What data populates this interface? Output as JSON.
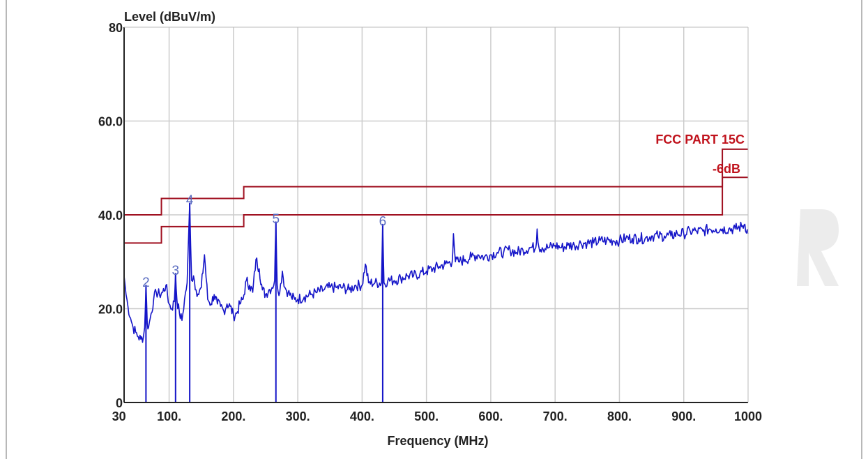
{
  "colors": {
    "trace": "#1515c8",
    "limit": "#a01020",
    "limit_text": "#c0121c",
    "grid": "#cccccc",
    "axis": "#222222",
    "marker_text": "#5a6cc0"
  },
  "chart_data": {
    "type": "line",
    "title": "",
    "ylabel": "Level (dBuV/m)",
    "xlabel": "Frequency (MHz)",
    "xlim": [
      30,
      1000
    ],
    "ylim": [
      0,
      80
    ],
    "grid": true,
    "x_ticks": [
      {
        "value": 30,
        "label": "30"
      },
      {
        "value": 100,
        "label": "100."
      },
      {
        "value": 200,
        "label": "200."
      },
      {
        "value": 300,
        "label": "300."
      },
      {
        "value": 400,
        "label": "400."
      },
      {
        "value": 500,
        "label": "500."
      },
      {
        "value": 600,
        "label": "600."
      },
      {
        "value": 700,
        "label": "700."
      },
      {
        "value": 800,
        "label": "800."
      },
      {
        "value": 900,
        "label": "900."
      },
      {
        "value": 1000,
        "label": "1000"
      }
    ],
    "y_ticks": [
      {
        "value": 0,
        "label": "0"
      },
      {
        "value": 20,
        "label": "20.0"
      },
      {
        "value": 40,
        "label": "40.0"
      },
      {
        "value": 60,
        "label": "60.0"
      },
      {
        "value": 80,
        "label": "80"
      }
    ],
    "limit_lines": [
      {
        "name": "FCC PART 15C",
        "points": [
          [
            30,
            40.0
          ],
          [
            88,
            40.0
          ],
          [
            88,
            43.5
          ],
          [
            216,
            43.5
          ],
          [
            216,
            46.0
          ],
          [
            960,
            46.0
          ],
          [
            960,
            54.0
          ],
          [
            1000,
            54.0
          ]
        ]
      },
      {
        "name": "-6dB",
        "points": [
          [
            30,
            34.0
          ],
          [
            88,
            34.0
          ],
          [
            88,
            37.5
          ],
          [
            216,
            37.5
          ],
          [
            216,
            40.0
          ],
          [
            960,
            40.0
          ],
          [
            960,
            48.0
          ],
          [
            1000,
            48.0
          ]
        ]
      }
    ],
    "markers": [
      {
        "label": "2",
        "x": 64.0,
        "y": 25.0
      },
      {
        "label": "3",
        "x": 110.0,
        "y": 27.5
      },
      {
        "label": "4",
        "x": 132.0,
        "y": 42.5
      },
      {
        "label": "5",
        "x": 266.0,
        "y": 38.5
      },
      {
        "label": "6",
        "x": 432.0,
        "y": 38.0
      }
    ],
    "series": [
      {
        "x": [
          30,
          33,
          36,
          40,
          44,
          48,
          52,
          56,
          60,
          62,
          64,
          66,
          68,
          72,
          76,
          80,
          85,
          90,
          95,
          100,
          104,
          108,
          110,
          112,
          116,
          120,
          124,
          128,
          132,
          135,
          138,
          142,
          146,
          150,
          155,
          160,
          165,
          170,
          175,
          180,
          185,
          190,
          195,
          200,
          205,
          210,
          215,
          220,
          225,
          230,
          235,
          240,
          245,
          250,
          255,
          260,
          264,
          266,
          268,
          272,
          276,
          280,
          285,
          290,
          295,
          300,
          310,
          320,
          330,
          340,
          350,
          360,
          370,
          380,
          390,
          400,
          405,
          410,
          420,
          430,
          432,
          434,
          440,
          450,
          460,
          470,
          480,
          490,
          500,
          510,
          520,
          530,
          540,
          542,
          545,
          550,
          560,
          570,
          580,
          590,
          600,
          610,
          620,
          630,
          640,
          650,
          660,
          670,
          672,
          675,
          680,
          690,
          700,
          710,
          720,
          730,
          740,
          750,
          760,
          770,
          780,
          790,
          800,
          810,
          820,
          830,
          840,
          850,
          860,
          870,
          880,
          890,
          900,
          910,
          920,
          930,
          940,
          950,
          960,
          970,
          980,
          990,
          995,
          1000
        ],
        "values": [
          27.0,
          23.0,
          20.5,
          18.0,
          16.0,
          15.0,
          14.0,
          13.5,
          14.0,
          16.0,
          25.0,
          17.0,
          16.0,
          19.0,
          22.0,
          23.5,
          23.0,
          23.5,
          25.0,
          21.0,
          20.0,
          21.5,
          27.5,
          22.0,
          19.0,
          17.5,
          22.0,
          25.5,
          42.5,
          26.0,
          27.0,
          24.0,
          23.0,
          24.5,
          31.5,
          22.0,
          21.0,
          23.0,
          21.0,
          20.5,
          19.5,
          21.0,
          20.5,
          18.5,
          19.0,
          21.0,
          22.0,
          26.0,
          25.0,
          23.5,
          30.5,
          28.5,
          24.0,
          23.0,
          24.0,
          24.5,
          26.0,
          38.5,
          25.0,
          23.5,
          28.0,
          24.5,
          23.5,
          22.5,
          22.0,
          22.0,
          22.5,
          23.0,
          23.5,
          24.0,
          24.5,
          24.5,
          24.5,
          24.0,
          25.0,
          25.0,
          29.5,
          25.5,
          25.5,
          25.5,
          38.0,
          25.5,
          26.0,
          26.0,
          26.5,
          27.0,
          27.0,
          27.5,
          28.0,
          28.5,
          29.0,
          29.5,
          30.0,
          36.0,
          30.0,
          30.0,
          30.5,
          31.0,
          31.5,
          31.0,
          31.5,
          32.0,
          32.0,
          32.5,
          32.0,
          32.5,
          33.0,
          33.0,
          37.0,
          33.0,
          33.0,
          33.0,
          33.5,
          33.0,
          33.5,
          33.5,
          34.0,
          34.0,
          34.0,
          34.5,
          34.5,
          34.5,
          34.5,
          35.0,
          35.0,
          35.0,
          35.0,
          35.5,
          35.5,
          35.5,
          35.5,
          36.0,
          36.0,
          36.5,
          36.5,
          36.5,
          37.0,
          37.0,
          37.0,
          37.0,
          37.0,
          37.5,
          38.0,
          36.0
        ]
      }
    ]
  }
}
